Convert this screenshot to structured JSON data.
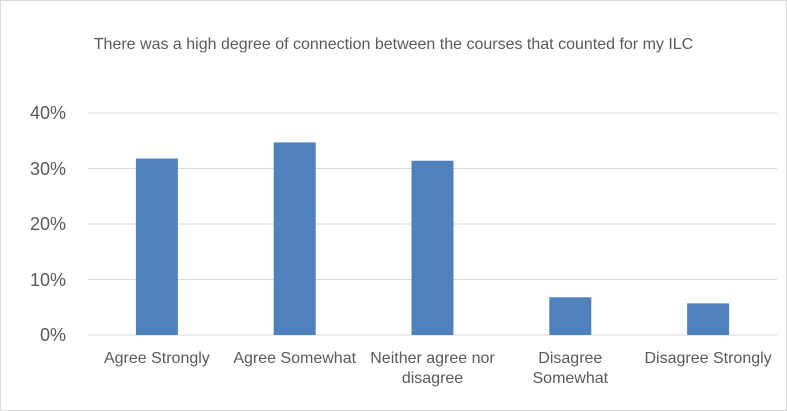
{
  "chart_data": {
    "type": "bar",
    "title": "There was a high degree of connection between the courses that counted for my ILC",
    "categories": [
      "Agree Strongly",
      "Agree Somewhat",
      "Neither agree nor disagree",
      "Disagree Somewhat",
      "Disagree Strongly"
    ],
    "values": [
      31.8,
      34.7,
      31.4,
      6.8,
      5.7
    ],
    "color": "#4f81bd",
    "ylim": [
      0,
      40
    ],
    "yticks": [
      {
        "value": 0,
        "label": "0%"
      },
      {
        "value": 10,
        "label": "10%"
      },
      {
        "value": 20,
        "label": "20%"
      },
      {
        "value": 30,
        "label": "30%"
      },
      {
        "value": 40,
        "label": "40%"
      }
    ],
    "grid": true
  }
}
